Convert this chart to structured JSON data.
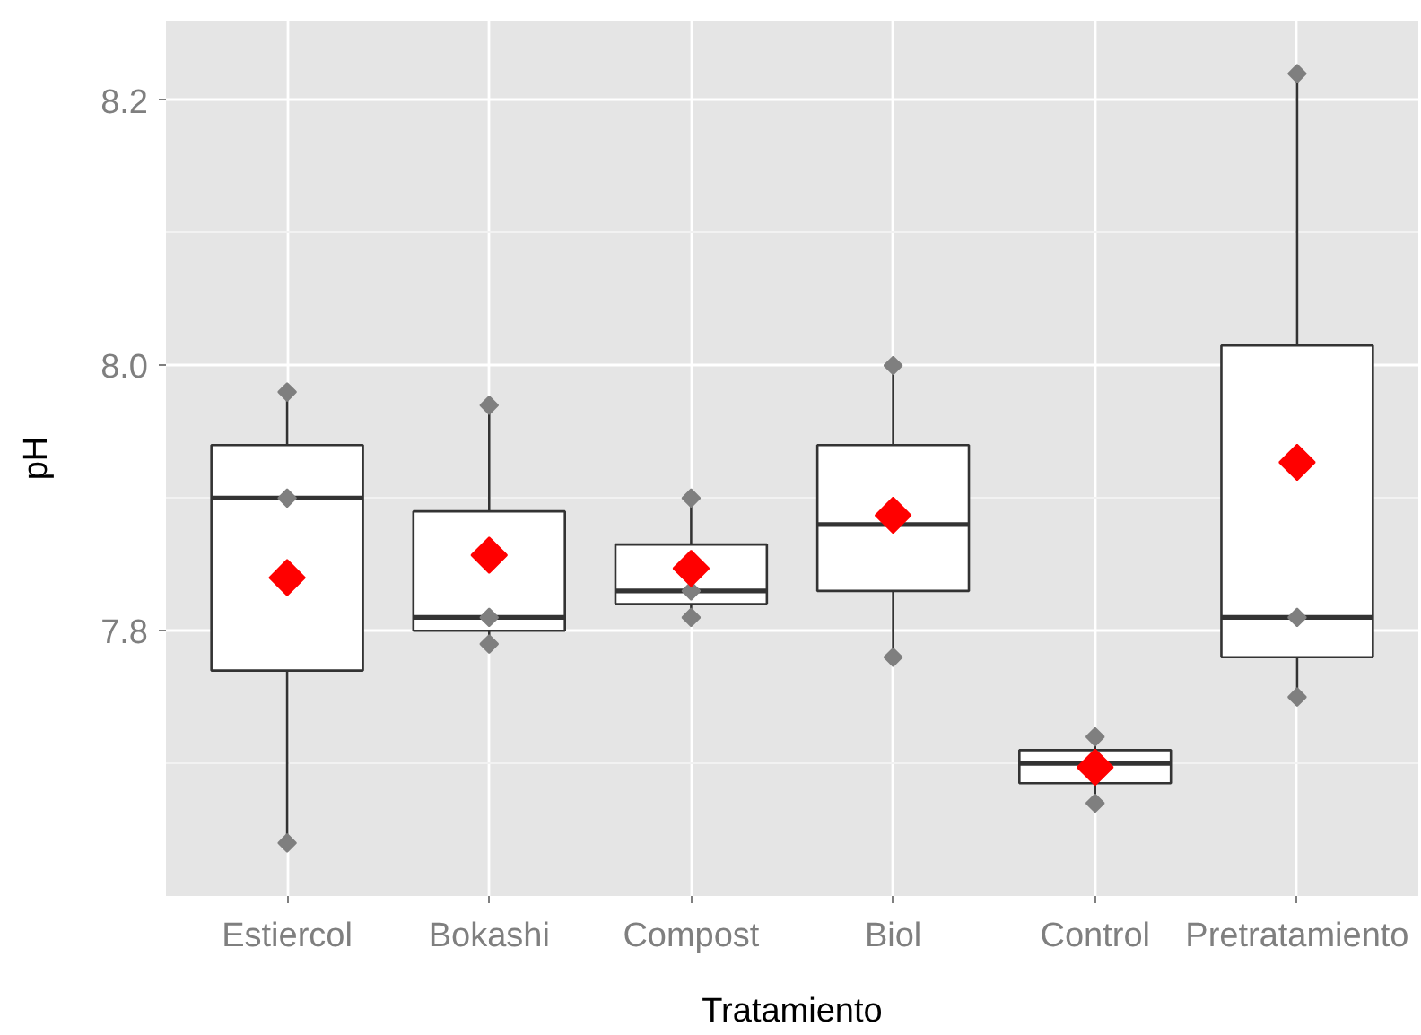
{
  "chart_data": {
    "type": "box",
    "xlabel": "Tratamiento",
    "ylabel": "pH",
    "categories": [
      "Estiercol",
      "Bokashi",
      "Compost",
      "Biol",
      "Control",
      "Pretratamiento"
    ],
    "ylim": [
      7.6,
      8.26
    ],
    "yticks": [
      {
        "value": 7.7,
        "label": null
      },
      7.8,
      {
        "value": 7.9,
        "label": null
      },
      {
        "value": 8,
        "label": "8.0"
      },
      {
        "value": 8.1,
        "label": null
      },
      8.2
    ],
    "grid": true,
    "marker": "diamond",
    "series": [
      {
        "color": "#333333",
        "boxes": [
          {
            "low": 7.64,
            "q1": 7.77,
            "median": 7.9,
            "q3": 7.94,
            "high": 7.98
          },
          {
            "low": 7.79,
            "q1": 7.8,
            "median": 7.81,
            "q3": 7.89,
            "high": 7.97
          },
          {
            "low": 7.81,
            "q1": 7.82,
            "median": 7.83,
            "q3": 7.865,
            "high": 7.9
          },
          {
            "low": 7.78,
            "q1": 7.83,
            "median": 7.88,
            "q3": 7.94,
            "high": 8.0
          },
          {
            "low": 7.67,
            "q1": 7.685,
            "median": 7.7,
            "q3": 7.71,
            "high": 7.72
          },
          {
            "low": 7.75,
            "q1": 7.78,
            "median": 7.81,
            "q3": 8.015,
            "high": 8.22
          }
        ]
      },
      {
        "type": "scatter",
        "color": "#7f7f7f",
        "x": [
          "Estiercol",
          "Estiercol",
          "Estiercol",
          "Bokashi",
          "Bokashi",
          "Bokashi",
          "Compost",
          "Compost",
          "Compost",
          "Biol",
          "Biol",
          "Control",
          "Control",
          "Pretratamiento",
          "Pretratamiento",
          "Pretratamiento"
        ],
        "values": [
          7.98,
          7.9,
          7.64,
          7.97,
          7.81,
          7.79,
          7.9,
          7.83,
          7.81,
          8.0,
          7.78,
          7.72,
          7.67,
          8.22,
          7.81,
          7.75
        ]
      },
      {
        "type": "scatter",
        "color": "#ff0000",
        "x": [
          "Estiercol",
          "Bokashi",
          "Compost",
          "Biol",
          "Control",
          "Pretratamiento"
        ],
        "values": [
          7.84,
          7.857,
          7.847,
          7.887,
          7.697,
          7.927
        ]
      }
    ]
  }
}
